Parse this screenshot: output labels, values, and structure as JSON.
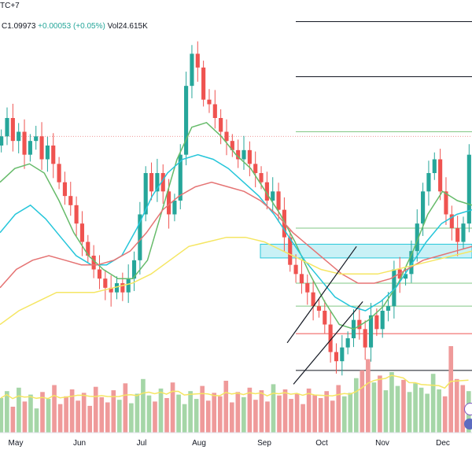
{
  "header": {
    "timezone_label": "TC+7",
    "close_label": "C",
    "close_value": "1.09973",
    "change_value": "+0.00053",
    "change_pct": "(+0.05%)",
    "volume_label": "Vol",
    "volume_value": "24.615K"
  },
  "colors": {
    "up": "#26a69a",
    "down": "#ef5350",
    "up_volume": "#a5d6a7",
    "down_volume": "#ef9a9a",
    "ma_fast": "#66bb6a",
    "ma_medium": "#26c6da",
    "ma_slow": "#e57373",
    "ma_long": "#f5e663",
    "zone_fill": "#b2ebf2"
  },
  "chart_data": {
    "type": "candlestick",
    "title": "",
    "x_tick_labels": [
      "May",
      "Jun",
      "Jul",
      "Aug",
      "Sep",
      "Oct",
      "Nov",
      "Dec"
    ],
    "y_axis": "hidden",
    "ylim": [
      1.044,
      1.128
    ],
    "grid": false,
    "close_samples": [
      1.1,
      1.104,
      1.099,
      1.101,
      1.096,
      1.099,
      1.1,
      1.095,
      1.098,
      1.094,
      1.09,
      1.087,
      1.085,
      1.081,
      1.077,
      1.074,
      1.071,
      1.069,
      1.067,
      1.066,
      1.068,
      1.066,
      1.069,
      1.073,
      1.083,
      1.092,
      1.088,
      1.092,
      1.088,
      1.083,
      1.086,
      1.096,
      1.111,
      1.118,
      1.115,
      1.108,
      1.107,
      1.104,
      1.101,
      1.099,
      1.097,
      1.095,
      1.097,
      1.094,
      1.092,
      1.09,
      1.086,
      1.088,
      1.084,
      1.078,
      1.072,
      1.07,
      1.068,
      1.066,
      1.063,
      1.062,
      1.059,
      1.053,
      1.051,
      1.054,
      1.056,
      1.06,
      1.058,
      1.054,
      1.061,
      1.058,
      1.062,
      1.063,
      1.071,
      1.069,
      1.07,
      1.075,
      1.081,
      1.088,
      1.092,
      1.095,
      1.088,
      1.083,
      1.08,
      1.077,
      1.081,
      1.096
    ],
    "moving_averages": [
      {
        "values": [
          1.09,
          1.093,
          1.094,
          1.092,
          1.086,
          1.079,
          1.074,
          1.071,
          1.069,
          1.069,
          1.073,
          1.084,
          1.095,
          1.102,
          1.103,
          1.1,
          1.096,
          1.093,
          1.088,
          1.083,
          1.077,
          1.07,
          1.064,
          1.059,
          1.058,
          1.06,
          1.063,
          1.068,
          1.075,
          1.083,
          1.088,
          1.086,
          1.085
        ]
      },
      {
        "values": [
          1.079,
          1.083,
          1.085,
          1.082,
          1.078,
          1.074,
          1.072,
          1.072,
          1.074,
          1.08,
          1.087,
          1.092,
          1.095,
          1.096,
          1.095,
          1.093,
          1.09,
          1.087,
          1.083,
          1.078,
          1.073,
          1.069,
          1.065,
          1.063,
          1.062,
          1.064,
          1.067,
          1.072,
          1.077,
          1.081,
          1.083,
          1.084
        ]
      },
      {
        "values": [
          1.067,
          1.071,
          1.073,
          1.074,
          1.073,
          1.072,
          1.072,
          1.073,
          1.075,
          1.079,
          1.084,
          1.087,
          1.089,
          1.09,
          1.089,
          1.088,
          1.086,
          1.083,
          1.079,
          1.076,
          1.073,
          1.07,
          1.068,
          1.068,
          1.069,
          1.071,
          1.073,
          1.074,
          1.075,
          1.076
        ]
      },
      {
        "values": [
          1.059,
          1.062,
          1.064,
          1.066,
          1.066,
          1.066,
          1.067,
          1.068,
          1.07,
          1.073,
          1.076,
          1.077,
          1.078,
          1.078,
          1.077,
          1.075,
          1.073,
          1.071,
          1.07,
          1.07,
          1.07,
          1.071,
          1.072,
          1.073,
          1.074,
          1.075
        ]
      }
    ],
    "horizontal_levels": [
      {
        "value": 1.125,
        "color": "#131722"
      },
      {
        "value": 1.113,
        "color": "#131722"
      },
      {
        "value": 1.101,
        "color": "#81c784"
      },
      {
        "value": 1.1,
        "color": "#ef9a9a"
      },
      {
        "value": 1.08,
        "color": "#81c784"
      },
      {
        "value": 1.068,
        "color": "#81c784"
      },
      {
        "value": 1.063,
        "color": "#81c784"
      },
      {
        "value": 1.057,
        "color": "#ef5350"
      },
      {
        "value": 1.049,
        "color": "#131722"
      }
    ],
    "zone": {
      "from": 1.0735,
      "to": 1.0765
    },
    "volume_samples": [
      0.4,
      0.48,
      0.3,
      0.52,
      0.36,
      0.44,
      0.28,
      0.47,
      0.39,
      0.55,
      0.33,
      0.42,
      0.5,
      0.37,
      0.46,
      0.31,
      0.53,
      0.41,
      0.35,
      0.49,
      0.38,
      0.57,
      0.34,
      0.45,
      0.62,
      0.43,
      0.36,
      0.51,
      0.4,
      0.58,
      0.44,
      0.33,
      0.48,
      0.39,
      0.54,
      0.37,
      0.46,
      0.42,
      0.6,
      0.35,
      0.47,
      0.41,
      0.52,
      0.38,
      0.49,
      0.36,
      0.56,
      0.43,
      0.5,
      0.39,
      0.45,
      0.33,
      0.51,
      0.44,
      0.4,
      0.48,
      0.37,
      0.55,
      0.42,
      0.46,
      0.63,
      0.72,
      0.85,
      0.58,
      0.66,
      0.49,
      0.7,
      0.54,
      0.61,
      0.47,
      0.57,
      0.52,
      0.45,
      0.68,
      0.5,
      0.42,
      1.0,
      0.62,
      0.55,
      0.48
    ]
  }
}
